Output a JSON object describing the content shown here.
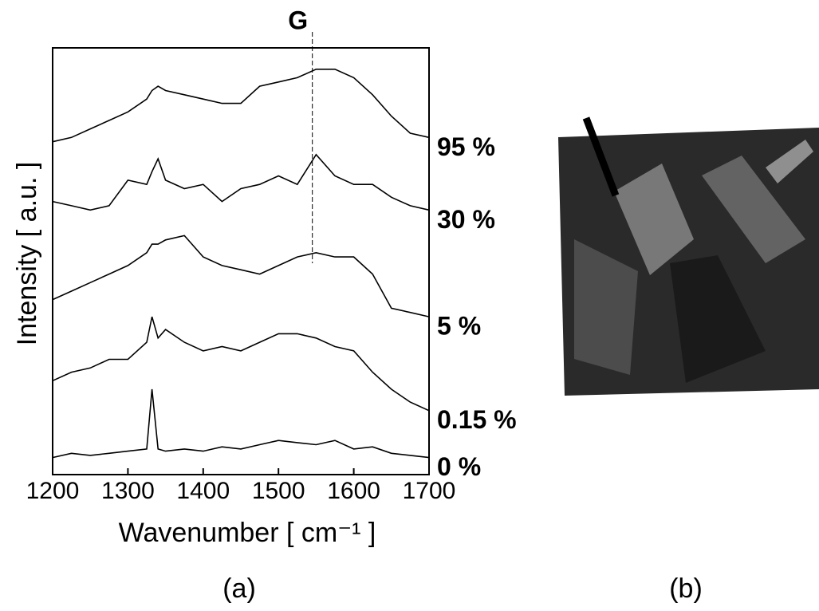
{
  "chart_data": {
    "type": "line",
    "x_label": "Wavenumber [ cm⁻¹ ]",
    "y_label": "Intensity [ a.u. ]",
    "x": [
      1200,
      1225,
      1250,
      1275,
      1300,
      1325,
      1332,
      1340,
      1350,
      1375,
      1400,
      1425,
      1450,
      1475,
      1500,
      1525,
      1550,
      1575,
      1600,
      1625,
      1650,
      1675,
      1700
    ],
    "series": [
      {
        "name": "95 %",
        "color": "#000000",
        "values": [
          78,
          79,
          81,
          83,
          85,
          88,
          90,
          91,
          90,
          89,
          88,
          87,
          87,
          91,
          92,
          93,
          95,
          95,
          93,
          89,
          84,
          80,
          79
        ]
      },
      {
        "name": "30 %",
        "color": "#000000",
        "values": [
          64,
          63,
          62,
          63,
          69,
          68,
          71,
          74,
          69,
          67,
          68,
          64,
          67,
          68,
          70,
          68,
          75,
          70,
          68,
          68,
          65,
          63,
          62
        ]
      },
      {
        "name": "5 %",
        "color": "#000000",
        "values": [
          41,
          43,
          45,
          47,
          49,
          52,
          54,
          54,
          55,
          56,
          51,
          49,
          48,
          47,
          49,
          51,
          52,
          51,
          51,
          47,
          39,
          38,
          37
        ]
      },
      {
        "name": "0.15 %",
        "color": "#000000",
        "values": [
          22,
          24,
          25,
          27,
          27,
          31,
          37,
          32,
          34,
          31,
          29,
          30,
          29,
          31,
          33,
          33,
          32,
          30,
          29,
          24,
          20,
          17,
          15
        ]
      },
      {
        "name": "0 %",
        "color": "#000000",
        "values": [
          4,
          5,
          4.5,
          5,
          5.5,
          6,
          20,
          6,
          5.5,
          6,
          5.5,
          6.5,
          6,
          7,
          8,
          7.5,
          7,
          8,
          6,
          6.5,
          5,
          4.5,
          4
        ]
      }
    ],
    "xlim": [
      1200,
      1700
    ],
    "xticks": [
      1200,
      1300,
      1400,
      1500,
      1600,
      1700
    ],
    "ylim": [
      0,
      100
    ],
    "annotation": {
      "label": "G",
      "x": 1545
    }
  },
  "panel_labels": [
    "(a)",
    "(b)"
  ]
}
